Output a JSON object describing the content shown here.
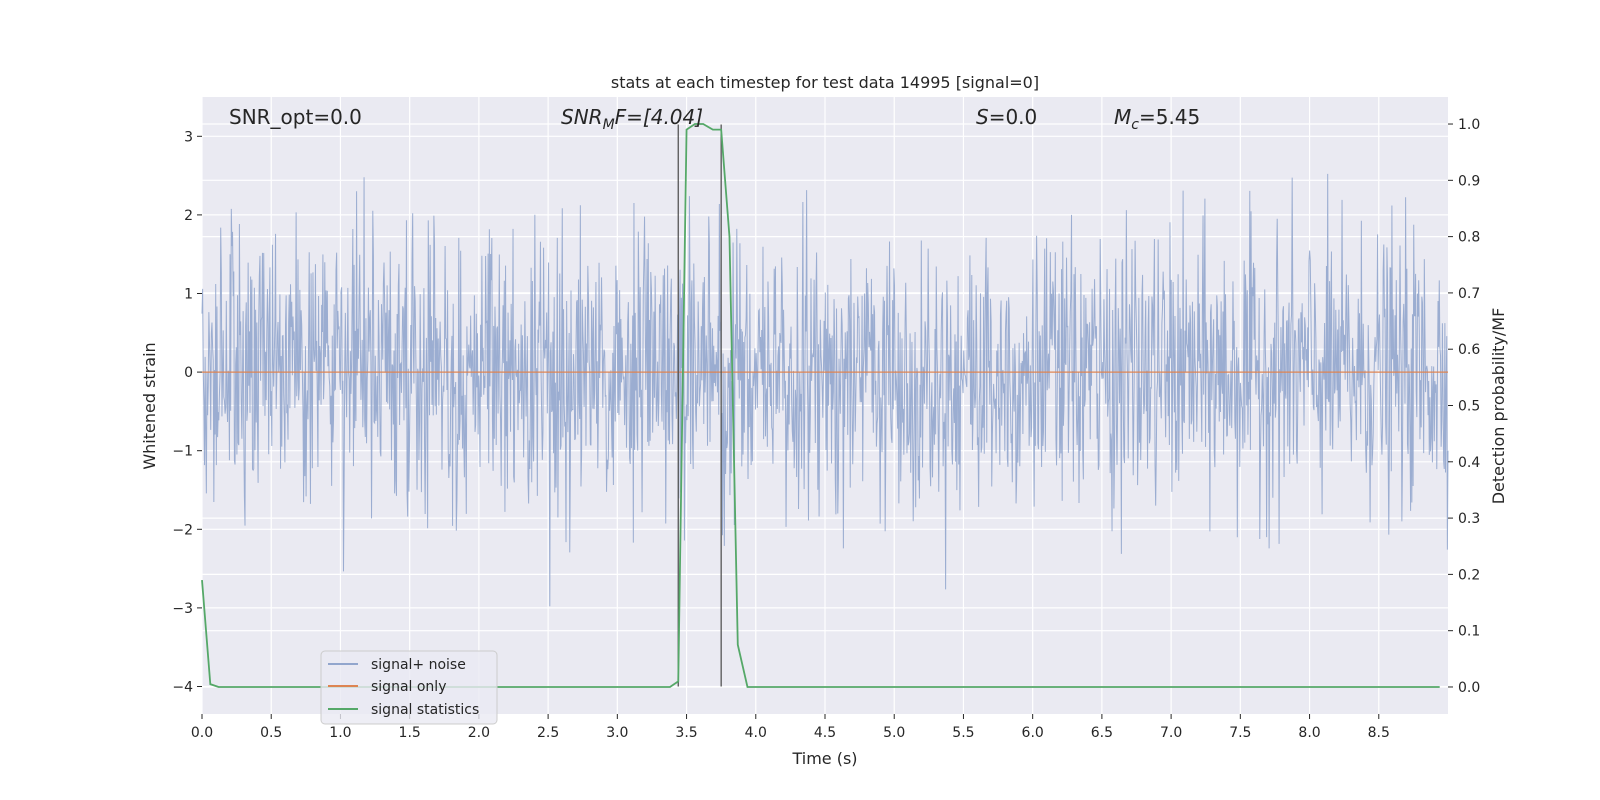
{
  "chart_data": {
    "type": "line",
    "title": "stats at each timestep for test data 14995 [signal=0]",
    "xlabel": "Time (s)",
    "ylabel": "Whitened strain",
    "y2label": "Detection probability/MF",
    "xlim": [
      0.0,
      9.0
    ],
    "ylim": [
      -4.35,
      3.5
    ],
    "y2lim": [
      -0.048,
      1.048
    ],
    "xticks": [
      "0.0",
      "0.5",
      "1.0",
      "1.5",
      "2.0",
      "2.5",
      "3.0",
      "3.5",
      "4.0",
      "4.5",
      "5.0",
      "5.5",
      "6.0",
      "6.5",
      "7.0",
      "7.5",
      "8.0",
      "8.5"
    ],
    "yticks": [
      "−4",
      "−3",
      "−2",
      "−1",
      "0",
      "1",
      "2",
      "3"
    ],
    "y2ticks": [
      "0.0",
      "0.1",
      "0.2",
      "0.3",
      "0.4",
      "0.5",
      "0.6",
      "0.7",
      "0.8",
      "0.9",
      "1.0"
    ],
    "grid": true,
    "legend_position": "lower-left",
    "annotations": {
      "snr_opt": "SNR_opt=0.0",
      "snr_mf_symbol": "SNR",
      "snr_mf_sub": "M",
      "snr_mf_rest": "F=[4.04]",
      "s_symbol": "S",
      "s_rest": "=0.0",
      "mc_symbol": "M",
      "mc_sub": "c",
      "mc_rest": "=5.45"
    },
    "vlines_x": [
      3.44,
      3.75
    ],
    "series": [
      {
        "name": "signal+ noise",
        "axis": "left",
        "color": "#92a6cd",
        "noise_sigma": 0.85,
        "samples": 2000
      },
      {
        "name": "signal only",
        "axis": "left",
        "color": "#dd8452",
        "x": [
          0.0,
          9.0
        ],
        "y": [
          0.0,
          0.0
        ]
      },
      {
        "name": "signal statistics",
        "axis": "right",
        "color": "#55a868",
        "x": [
          0.0,
          0.06,
          0.12,
          0.5,
          1.0,
          1.5,
          2.0,
          2.5,
          3.0,
          3.38,
          3.44,
          3.5,
          3.56,
          3.62,
          3.69,
          3.75,
          3.81,
          3.87,
          3.94,
          4.0,
          4.5,
          5.0,
          5.5,
          6.0,
          6.5,
          7.0,
          7.5,
          8.0,
          8.5,
          8.94
        ],
        "y": [
          0.19,
          0.005,
          0.0,
          0.0,
          0.0,
          0.0,
          0.0,
          0.0,
          0.0,
          0.0,
          0.01,
          0.99,
          1.0,
          1.0,
          0.99,
          0.99,
          0.8,
          0.075,
          0.0,
          0.0,
          0.0,
          0.0,
          0.0,
          0.0,
          0.0,
          0.0,
          0.0,
          0.0,
          0.0,
          0.0
        ]
      }
    ]
  }
}
